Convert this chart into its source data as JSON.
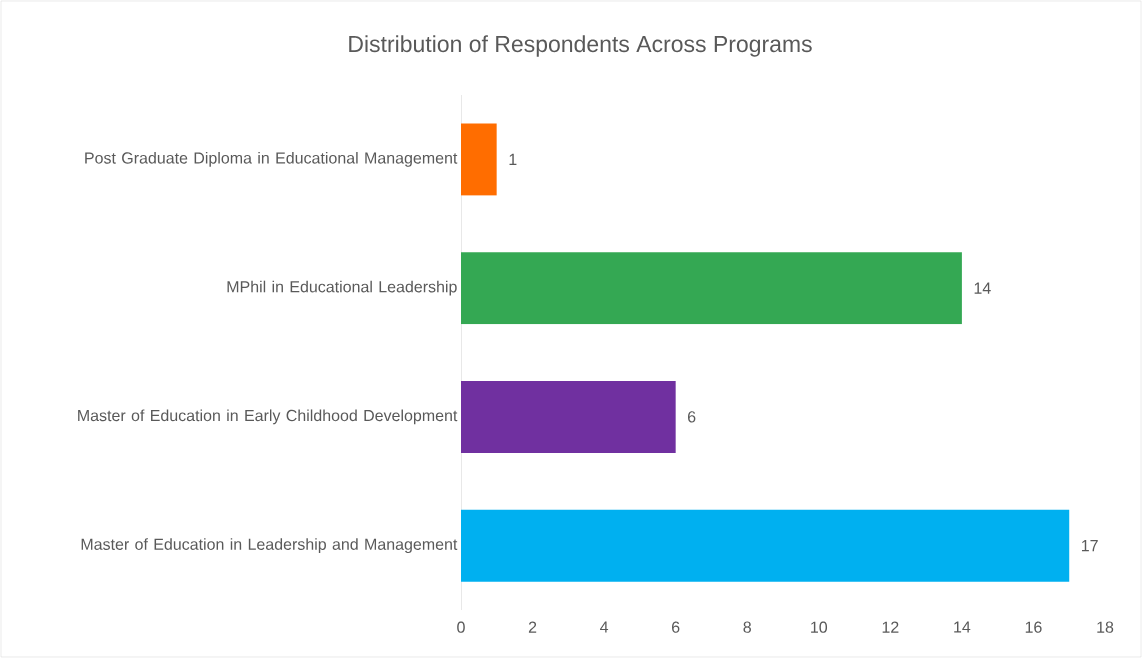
{
  "chart_data": {
    "type": "bar",
    "orientation": "horizontal",
    "title": "Distribution of Respondents Across Programs",
    "categories": [
      "Post Graduate Diploma in Educational Management",
      "MPhil in Educational Leadership",
      "Master of Education in Early Childhood Development",
      "Master of Education in Leadership and Management"
    ],
    "values": [
      1,
      14,
      6,
      17
    ],
    "colors": [
      "#ff6d00",
      "#34a853",
      "#7030a0",
      "#00b0f0"
    ],
    "xlim": [
      0,
      18
    ],
    "xticks": [
      0,
      2,
      4,
      6,
      8,
      10,
      12,
      14,
      16,
      18
    ],
    "data_labels": true,
    "grid": false
  }
}
